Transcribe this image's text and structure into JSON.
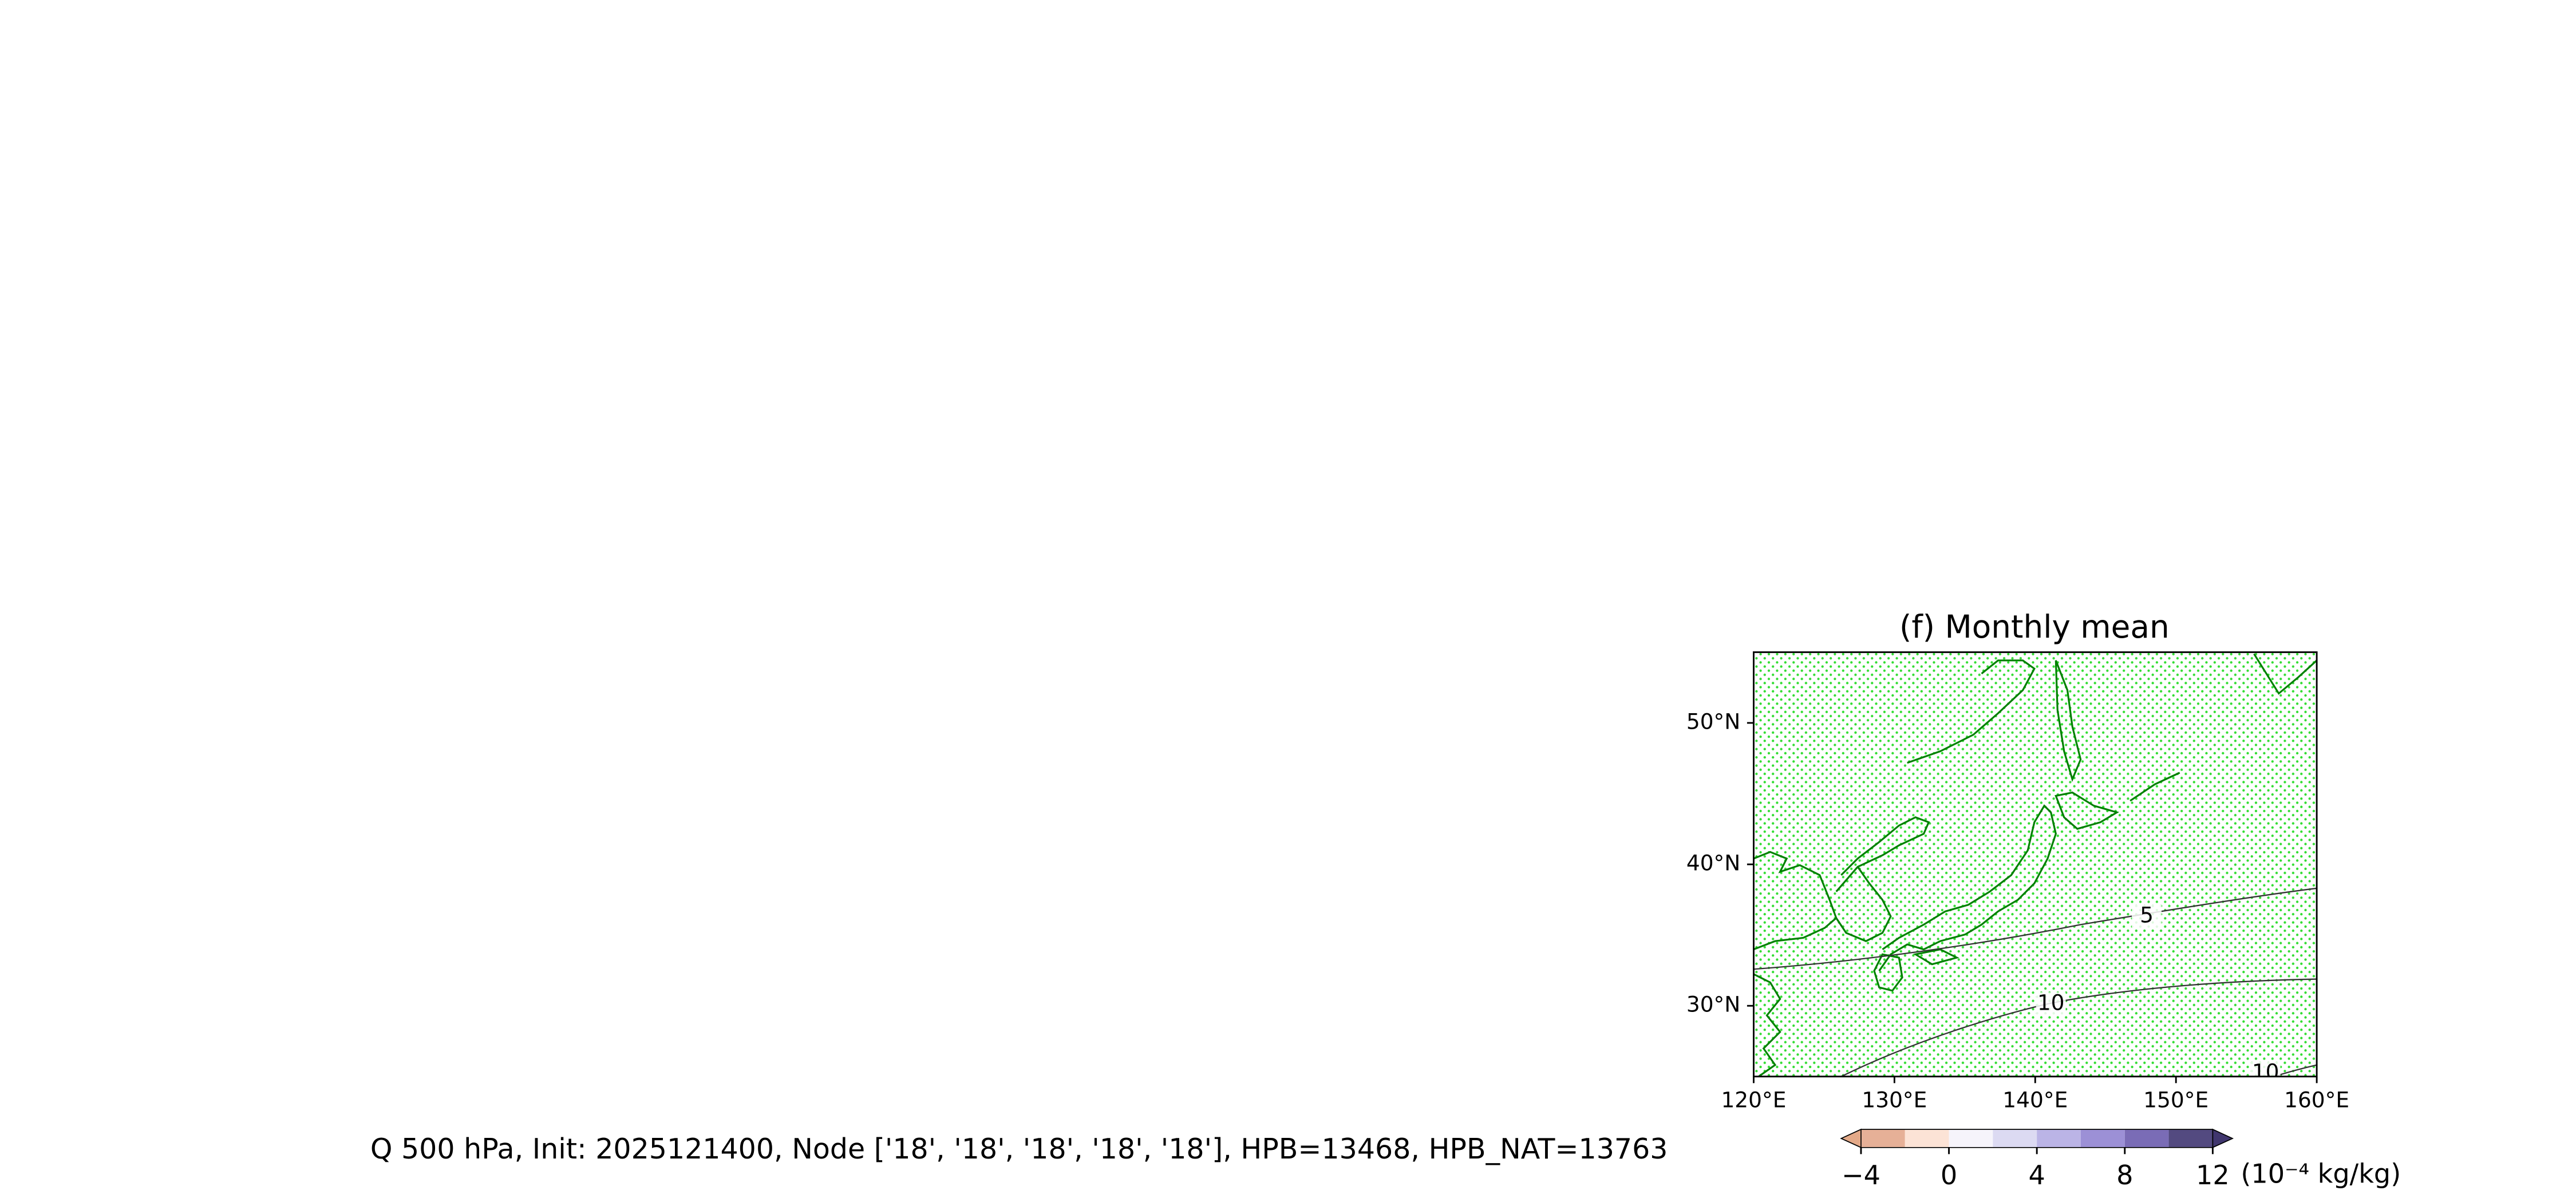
{
  "chart_data": {
    "type": "map",
    "title": "(f) Monthly mean",
    "xlim": [
      120,
      160
    ],
    "xticks": [
      {
        "value": 120,
        "label": "120°E"
      },
      {
        "value": 130,
        "label": "130°E"
      },
      {
        "value": 140,
        "label": "140°E"
      },
      {
        "value": 150,
        "label": "150°E"
      },
      {
        "value": 160,
        "label": "160°E"
      }
    ],
    "ylim": [
      25,
      55
    ],
    "yticks": [
      {
        "value": 30,
        "label": "30°N"
      },
      {
        "value": 40,
        "label": "40°N"
      },
      {
        "value": 50,
        "label": "50°N"
      }
    ],
    "contours": [
      5,
      10,
      10
    ],
    "contour_color": "#333333",
    "coast_color": "#008000",
    "stipple_color": "#33dd33",
    "colorbar": {
      "levels": [
        -4,
        -2,
        0,
        2,
        4,
        6,
        8,
        10,
        12
      ],
      "colors": [
        "#e6b097",
        "#fce3d6",
        "#f6f4fb",
        "#dcdaf2",
        "#bbb4e6",
        "#9c90d6",
        "#7a6cb6",
        "#534a80"
      ],
      "under": "#e3a988",
      "over": "#40366e",
      "ticks": [
        {
          "value": -4,
          "label": "−4"
        },
        0,
        4,
        8,
        12
      ],
      "label": "(10⁻⁴ kg/kg)"
    },
    "caption": "Q 500 hPa, Init: 2025121400, Node ['18', '18', '18', '18', '18'], HPB=13468, HPB_NAT=13763"
  }
}
